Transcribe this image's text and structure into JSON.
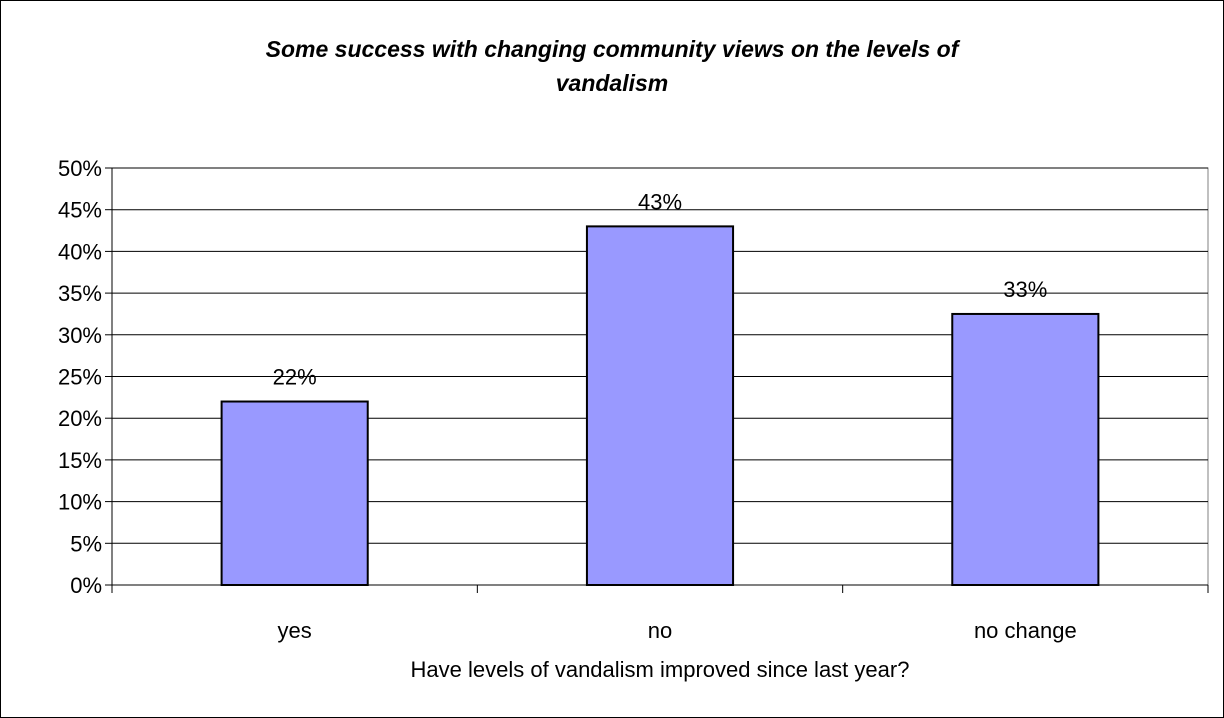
{
  "chart_data": {
    "type": "bar",
    "title_lines": [
      "Some success with changing community views on the  levels of",
      "vandalism"
    ],
    "xlabel": "Have levels of vandalism improved since last year?",
    "ylabel": "",
    "categories": [
      "yes",
      "no",
      "no change"
    ],
    "values": [
      22,
      43,
      32.5
    ],
    "value_labels": [
      "22%",
      "43%",
      "33%"
    ],
    "ylim": [
      0,
      50
    ],
    "yticks": [
      0,
      5,
      10,
      15,
      20,
      25,
      30,
      35,
      40,
      45,
      50
    ],
    "ytick_labels": [
      "0%",
      "5%",
      "10%",
      "15%",
      "20%",
      "25%",
      "30%",
      "35%",
      "40%",
      "45%",
      "50%"
    ],
    "grid": true,
    "legend": "none",
    "colors": {
      "bar": "#9999FF",
      "bar_edge": "#000000",
      "grid": "#000000",
      "plot_bg": "#FFFFFF"
    }
  }
}
